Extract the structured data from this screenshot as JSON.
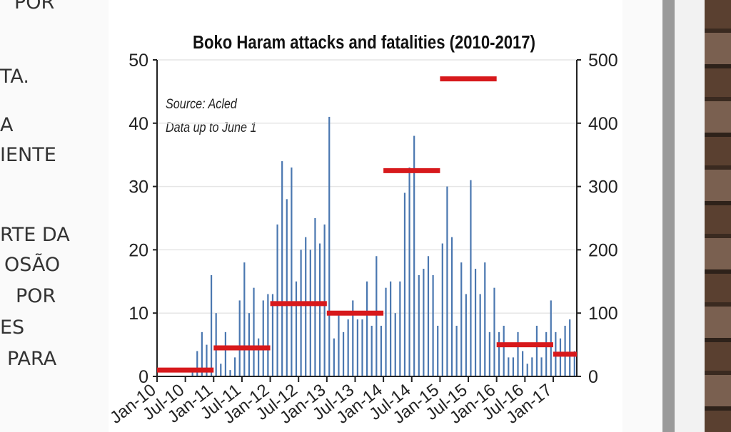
{
  "slide_text": [
    "POR",
    "TA.",
    "A",
    "IENTE",
    "RTE DA",
    "OSÃO",
    "POR",
    "ES",
    "PARA"
  ],
  "chart_data": {
    "type": "bar",
    "title": "Boko Haram attacks and fatalities (2010-2017)",
    "annotations": [
      "Source: Acled",
      "Data up to June 1"
    ],
    "series": [
      {
        "color": "#4a77b0",
        "values": [
          0,
          0,
          0,
          0,
          0,
          0,
          0,
          1,
          4,
          7,
          5,
          16,
          10,
          2,
          7,
          1,
          3,
          12,
          18,
          10,
          14,
          6,
          12,
          13,
          13,
          24,
          34,
          28,
          33,
          15,
          20,
          22,
          20,
          25,
          21,
          24,
          41,
          6,
          10,
          7,
          9,
          12,
          9,
          9,
          15,
          8,
          19,
          8,
          14,
          15,
          10,
          15,
          29,
          33,
          38,
          16,
          17,
          19,
          16,
          8,
          21,
          30,
          22,
          8,
          18,
          13,
          31,
          17,
          13,
          18,
          7,
          14,
          7,
          8,
          3,
          3,
          7,
          4,
          2,
          3,
          8,
          3,
          7,
          12,
          7,
          6,
          8,
          9,
          4
        ]
      },
      {
        "color": "#d7191c",
        "axis": "y2",
        "values": [
          10,
          45,
          115,
          100,
          325,
          470,
          50,
          35
        ]
      }
    ],
    "ylim": [
      0,
      50
    ],
    "yticks": [
      0,
      10,
      20,
      30,
      40,
      50
    ],
    "y2lim": [
      0,
      500
    ],
    "y2ticks": [
      0,
      100,
      200,
      300,
      400,
      500
    ],
    "xlim": [
      0,
      89
    ],
    "xticks": [
      {
        "value": 0,
        "label": "Jan-10"
      },
      {
        "value": 6,
        "label": "Jul-10"
      },
      {
        "value": 12,
        "label": "Jan-11"
      },
      {
        "value": 18,
        "label": "Jul-11"
      },
      {
        "value": 24,
        "label": "Jan-12"
      },
      {
        "value": 30,
        "label": "Jul-12"
      },
      {
        "value": 36,
        "label": "Jan-13"
      },
      {
        "value": 42,
        "label": "Jul-13"
      },
      {
        "value": 48,
        "label": "Jan-14"
      },
      {
        "value": 54,
        "label": "Jul-14"
      },
      {
        "value": 60,
        "label": "Jan-15"
      },
      {
        "value": 66,
        "label": "Jul-15"
      },
      {
        "value": 72,
        "label": "Jan-16"
      },
      {
        "value": 78,
        "label": "Jul-16"
      },
      {
        "value": 84,
        "label": "Jan-17"
      }
    ],
    "grid": true
  }
}
